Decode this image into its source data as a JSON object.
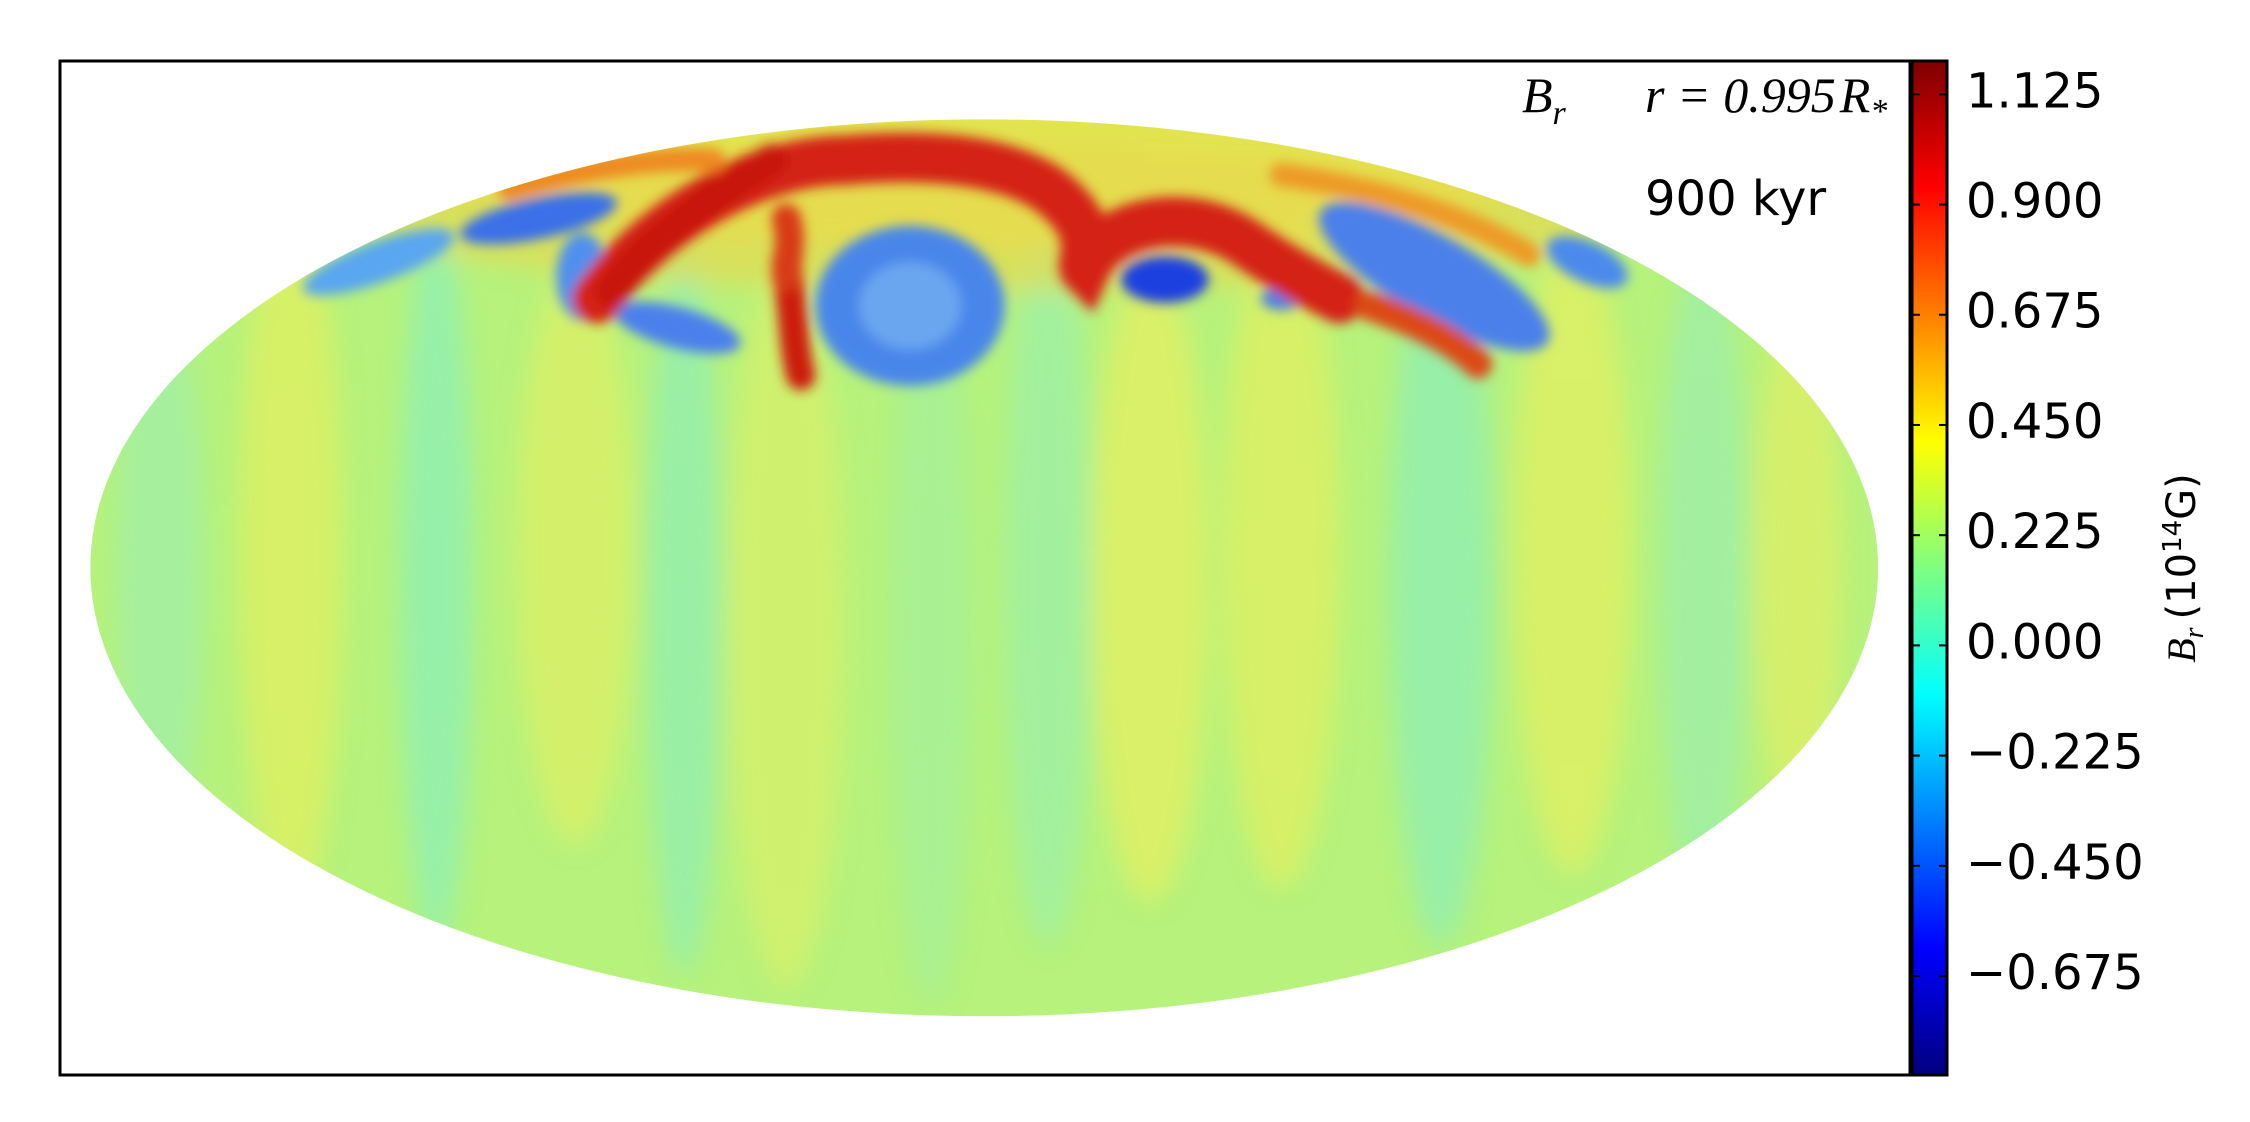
{
  "chart_data": {
    "type": "heatmap",
    "annotations": {
      "field": {
        "symbol": "B",
        "subscript": "r"
      },
      "radius": {
        "text": "r = 0.995",
        "symbol": "R",
        "subscript": "*"
      },
      "time": "900 kyr"
    },
    "colorbar": {
      "label": {
        "symbol": "B",
        "subscript": "r",
        "unit_start": "(10",
        "exponent": "14",
        "unit_end": "G)"
      },
      "colormap": "jet",
      "clim": [
        -0.877,
        1.193
      ],
      "ticks": [
        {
          "value": -0.675,
          "label": "−0.675"
        },
        {
          "value": -0.45,
          "label": "−0.450"
        },
        {
          "value": -0.225,
          "label": "−0.225"
        },
        {
          "value": 0,
          "label": "0.000"
        },
        0.225,
        {
          "value": 0.45,
          "label": "0.450"
        },
        0.675,
        {
          "value": 0.9,
          "label": "0.900"
        },
        1.125
      ]
    }
  }
}
